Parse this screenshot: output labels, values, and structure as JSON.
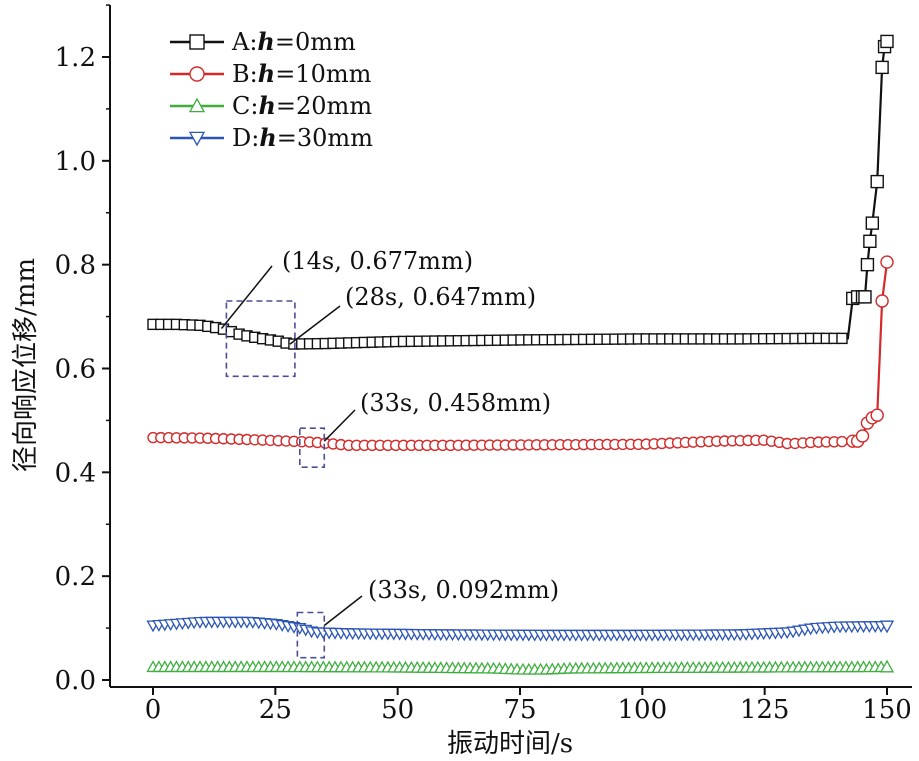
{
  "chart_data": {
    "type": "line",
    "xlabel": "振动时间/s",
    "ylabel": "径向响应位移/mm",
    "xlim": [
      -5,
      155
    ],
    "ylim": [
      0.0,
      1.3
    ],
    "xticks": [
      0,
      25,
      50,
      75,
      100,
      125,
      150
    ],
    "yticks": [
      0.0,
      0.2,
      0.4,
      0.6,
      0.8,
      1.0,
      1.2
    ],
    "xtick_labels": [
      "0",
      "25",
      "50",
      "75",
      "100",
      "125",
      "150"
    ],
    "ytick_labels": [
      "0.0",
      "0.2",
      "0.4",
      "0.6",
      "0.8",
      "1.0",
      "1.2"
    ],
    "legend_position": "top-left",
    "series": [
      {
        "name": "A:h=0mm",
        "label_prefix": "A:",
        "label_var": "h",
        "label_suffix": "=0mm",
        "color": "#111111",
        "marker": "square",
        "x": [
          0,
          5,
          10,
          14,
          18,
          22,
          26,
          28,
          35,
          50,
          75,
          100,
          120,
          135,
          140,
          142,
          143,
          144,
          145,
          145.5,
          146,
          146.5,
          147,
          148,
          149,
          149.5,
          150
        ],
        "y": [
          0.685,
          0.685,
          0.683,
          0.677,
          0.665,
          0.658,
          0.652,
          0.647,
          0.648,
          0.652,
          0.655,
          0.657,
          0.657,
          0.658,
          0.658,
          0.658,
          0.735,
          0.738,
          0.738,
          0.738,
          0.8,
          0.845,
          0.88,
          0.96,
          1.18,
          1.22,
          1.23
        ]
      },
      {
        "name": "B:h=10mm",
        "label_prefix": "B:",
        "label_var": "h",
        "label_suffix": "=10mm",
        "color": "#d42a2a",
        "marker": "circle",
        "x": [
          0,
          10,
          20,
          28,
          33,
          40,
          60,
          80,
          100,
          115,
          125,
          130,
          135,
          140,
          143,
          144,
          145,
          146,
          147,
          148,
          149,
          150
        ],
        "y": [
          0.467,
          0.466,
          0.463,
          0.46,
          0.458,
          0.452,
          0.452,
          0.453,
          0.454,
          0.46,
          0.462,
          0.455,
          0.458,
          0.459,
          0.46,
          0.46,
          0.47,
          0.495,
          0.505,
          0.51,
          0.73,
          0.805
        ]
      },
      {
        "name": "C:h=20mm",
        "label_prefix": "C:",
        "label_var": "h",
        "label_suffix": "=20mm",
        "color": "#3fae3f",
        "marker": "triangle-up",
        "x": [
          0,
          25,
          50,
          70,
          75,
          80,
          85,
          100,
          125,
          150
        ],
        "y": [
          0.025,
          0.025,
          0.024,
          0.022,
          0.02,
          0.02,
          0.022,
          0.023,
          0.024,
          0.025
        ]
      },
      {
        "name": "D:h=30mm",
        "label_prefix": "D:",
        "label_var": "h",
        "label_suffix": "=30mm",
        "color": "#2b55b5",
        "marker": "triangle-down",
        "x": [
          0,
          10,
          20,
          25,
          30,
          33,
          40,
          60,
          80,
          100,
          120,
          130,
          135,
          140,
          150
        ],
        "y": [
          0.105,
          0.112,
          0.112,
          0.108,
          0.1,
          0.092,
          0.09,
          0.088,
          0.087,
          0.087,
          0.088,
          0.092,
          0.1,
          0.103,
          0.104
        ]
      }
    ],
    "annotations": [
      {
        "text": "(14s, 0.677mm)",
        "x": 14,
        "y": 0.677
      },
      {
        "text": "(28s, 0.647mm)",
        "x": 28,
        "y": 0.647
      },
      {
        "text": "(33s, 0.458mm)",
        "x": 33,
        "y": 0.458
      },
      {
        "text": "(33s, 0.092mm)",
        "x": 33,
        "y": 0.092
      }
    ]
  }
}
